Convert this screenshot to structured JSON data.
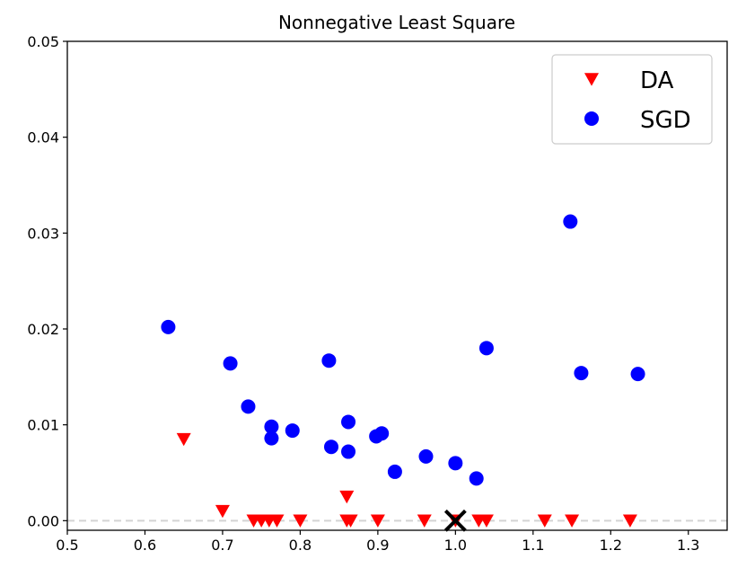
{
  "chart_data": {
    "type": "scatter",
    "title": "Nonnegative Least Square",
    "xlabel": "",
    "ylabel": "",
    "xlim": [
      0.5,
      1.35
    ],
    "ylim": [
      -0.001,
      0.05
    ],
    "x_ticks": [
      0.5,
      0.6,
      0.7,
      0.8,
      0.9,
      1.0,
      1.1,
      1.2,
      1.3
    ],
    "x_tick_labels": [
      "0.5",
      "0.6",
      "0.7",
      "0.8",
      "0.9",
      "1.0",
      "1.1",
      "1.2",
      "1.3"
    ],
    "y_ticks": [
      0.0,
      0.01,
      0.02,
      0.03,
      0.04,
      0.05
    ],
    "y_tick_labels": [
      "0.00",
      "0.01",
      "0.02",
      "0.03",
      "0.04",
      "0.05"
    ],
    "grid": false,
    "legend_position": "top-right",
    "reference_line": {
      "y": 0,
      "style": "dashed",
      "color": "#d3d3d3"
    },
    "reference_marker": {
      "x": 1.0,
      "y": 0.0,
      "marker": "x",
      "color": "#000000"
    },
    "series": [
      {
        "name": "DA",
        "marker": "triangle-down",
        "color": "#ff0000",
        "points": [
          [
            0.65,
            0.0085
          ],
          [
            0.7,
            0.001
          ],
          [
            0.74,
            0.0
          ],
          [
            0.75,
            0.0
          ],
          [
            0.76,
            0.0
          ],
          [
            0.77,
            0.0
          ],
          [
            0.8,
            0.0
          ],
          [
            0.86,
            0.0025
          ],
          [
            0.86,
            0.0
          ],
          [
            0.865,
            0.0
          ],
          [
            0.9,
            0.0
          ],
          [
            0.96,
            0.0
          ],
          [
            1.0,
            0.0
          ],
          [
            1.03,
            0.0
          ],
          [
            1.04,
            0.0
          ],
          [
            1.115,
            0.0
          ],
          [
            1.15,
            0.0
          ],
          [
            1.225,
            0.0
          ]
        ]
      },
      {
        "name": "SGD",
        "marker": "circle",
        "color": "#0000ff",
        "points": [
          [
            0.63,
            0.0202
          ],
          [
            0.71,
            0.0164
          ],
          [
            0.733,
            0.0119
          ],
          [
            0.763,
            0.0098
          ],
          [
            0.763,
            0.0086
          ],
          [
            0.79,
            0.0094
          ],
          [
            0.837,
            0.0167
          ],
          [
            0.84,
            0.0077
          ],
          [
            0.862,
            0.0103
          ],
          [
            0.862,
            0.0072
          ],
          [
            0.898,
            0.0088
          ],
          [
            0.905,
            0.0091
          ],
          [
            0.922,
            0.0051
          ],
          [
            0.962,
            0.0067
          ],
          [
            1.0,
            0.006
          ],
          [
            1.027,
            0.0044
          ],
          [
            1.04,
            0.018
          ],
          [
            1.148,
            0.0312
          ],
          [
            1.162,
            0.0154
          ],
          [
            1.235,
            0.0153
          ]
        ]
      }
    ]
  }
}
